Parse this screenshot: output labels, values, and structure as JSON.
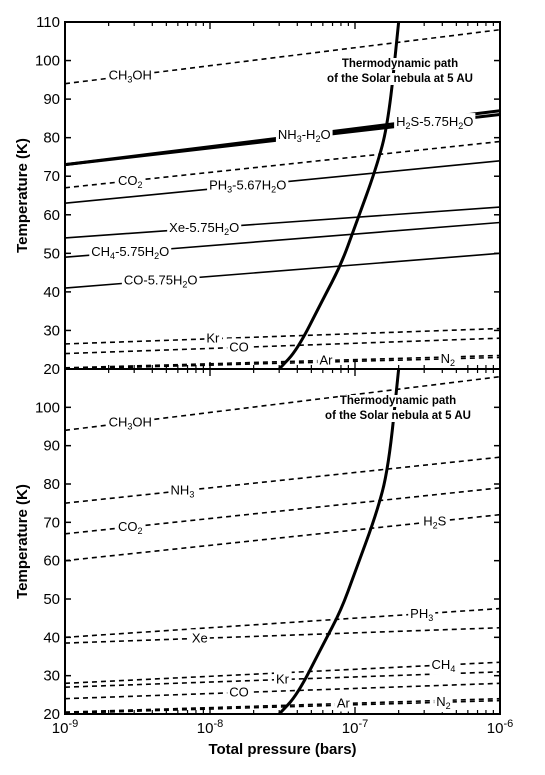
{
  "chart_data": [
    {
      "type": "line",
      "panel": "top",
      "xlabel": "",
      "ylabel": "Temperature (K)",
      "x_scale": "log",
      "xlim": [
        1e-09,
        1e-06
      ],
      "ylim": [
        20,
        110
      ],
      "y_ticks": [
        20,
        30,
        40,
        50,
        60,
        70,
        80,
        90,
        100,
        110
      ],
      "annotation": [
        "Thermodynamic path",
        "of the Solar nebula at 5 AU"
      ],
      "path": {
        "style": "solid-bold",
        "x": [
          3e-08,
          4e-08,
          6e-08,
          8e-08,
          1e-07,
          1.4e-07,
          1.7e-07,
          2e-07
        ],
        "y": [
          20,
          25,
          38,
          47,
          57,
          72,
          84,
          110
        ]
      },
      "series": [
        {
          "label_lines": [
            "CH",
            "3",
            "OH"
          ],
          "display": "CH3OH",
          "style": "dashed",
          "x": [
            1e-09,
            1e-06
          ],
          "y": [
            94,
            108
          ]
        },
        {
          "label_lines": [
            "NH",
            "3",
            "-H",
            "2",
            "O"
          ],
          "display": "NH3-H2O",
          "style": "solid-bold",
          "x": [
            1e-09,
            1e-06
          ],
          "y": [
            73,
            87
          ]
        },
        {
          "label_lines": [
            "H",
            "2",
            "S-5.75H",
            "2",
            "O"
          ],
          "display": "H2S-5.75H2O",
          "style": "solid-bold",
          "x": [
            1e-09,
            1e-06
          ],
          "y": [
            73,
            86
          ]
        },
        {
          "label_lines": [
            "CO",
            "2",
            ""
          ],
          "display": "CO2",
          "style": "dashed",
          "x": [
            1e-09,
            1e-06
          ],
          "y": [
            67,
            79
          ]
        },
        {
          "label_lines": [
            "PH",
            "3",
            "-5.67H",
            "2",
            "O"
          ],
          "display": "PH3-5.67H2O",
          "style": "solid",
          "x": [
            1e-09,
            1e-06
          ],
          "y": [
            63,
            74
          ]
        },
        {
          "label_lines": [
            "Xe-5.75H",
            "2",
            "O"
          ],
          "display": "Xe-5.75H2O",
          "style": "solid",
          "x": [
            1e-09,
            1e-06
          ],
          "y": [
            54,
            62
          ]
        },
        {
          "label_lines": [
            "CH",
            "4",
            "-5.75H",
            "2",
            "O"
          ],
          "display": "CH4-5.75H2O",
          "style": "solid",
          "x": [
            1e-09,
            1e-06
          ],
          "y": [
            49,
            58
          ]
        },
        {
          "label_lines": [
            "CO-5.75H",
            "2",
            "O"
          ],
          "display": "CO-5.75H2O",
          "style": "solid",
          "x": [
            1e-09,
            1e-06
          ],
          "y": [
            41,
            50
          ]
        },
        {
          "label_lines": [
            "Kr",
            "",
            ""
          ],
          "display": "Kr",
          "style": "dashed",
          "x": [
            1e-09,
            1e-06
          ],
          "y": [
            26.5,
            30.5
          ]
        },
        {
          "label_lines": [
            "CO",
            "",
            ""
          ],
          "display": "CO",
          "style": "dashed",
          "x": [
            1e-09,
            1e-06
          ],
          "y": [
            24,
            28
          ]
        },
        {
          "label_lines": [
            "Ar",
            "",
            ""
          ],
          "display": "Ar",
          "style": "dashed",
          "x": [
            1e-09,
            1e-06
          ],
          "y": [
            20.3,
            23.5
          ]
        },
        {
          "label_lines": [
            "N",
            "2",
            ""
          ],
          "display": "N2",
          "style": "dashed",
          "x": [
            1e-09,
            1e-06
          ],
          "y": [
            20,
            23
          ]
        }
      ]
    },
    {
      "type": "line",
      "panel": "bottom",
      "xlabel": "Total pressure (bars)",
      "ylabel": "Temperature (K)",
      "x_scale": "log",
      "xlim": [
        1e-09,
        1e-06
      ],
      "ylim": [
        20,
        110
      ],
      "x_ticks": [
        {
          "base": "10",
          "exp": "-9"
        },
        {
          "base": "10",
          "exp": "-8"
        },
        {
          "base": "10",
          "exp": "-7"
        },
        {
          "base": "10",
          "exp": "-6"
        }
      ],
      "y_ticks": [
        20,
        30,
        40,
        50,
        60,
        70,
        80,
        90,
        100
      ],
      "annotation": [
        "Thermodynamic path",
        "of the Solar nebula at 5 AU"
      ],
      "path": {
        "style": "solid-bold",
        "x": [
          3e-08,
          4e-08,
          6e-08,
          8e-08,
          1e-07,
          1.4e-07,
          1.7e-07,
          2e-07
        ],
        "y": [
          20,
          25,
          38,
          47,
          57,
          72,
          84,
          110
        ]
      },
      "series": [
        {
          "label_lines": [
            "CH",
            "3",
            "OH"
          ],
          "display": "CH3OH",
          "style": "dashed",
          "x": [
            1e-09,
            1e-06
          ],
          "y": [
            94,
            108
          ]
        },
        {
          "label_lines": [
            "NH",
            "3",
            ""
          ],
          "display": "NH3",
          "style": "dashed",
          "x": [
            1e-09,
            1e-06
          ],
          "y": [
            75,
            87
          ]
        },
        {
          "label_lines": [
            "CO",
            "2",
            ""
          ],
          "display": "CO2",
          "style": "dashed",
          "x": [
            1e-09,
            1e-06
          ],
          "y": [
            67,
            79
          ]
        },
        {
          "label_lines": [
            "H",
            "2",
            "S"
          ],
          "display": "H2S",
          "style": "dashed",
          "x": [
            1e-09,
            1e-06
          ],
          "y": [
            60,
            72
          ]
        },
        {
          "label_lines": [
            "PH",
            "3",
            ""
          ],
          "display": "PH3",
          "style": "dashed",
          "x": [
            1e-09,
            1e-06
          ],
          "y": [
            40,
            47.5
          ]
        },
        {
          "label_lines": [
            "Xe",
            "",
            ""
          ],
          "display": "Xe",
          "style": "dashed",
          "x": [
            1e-09,
            1e-06
          ],
          "y": [
            38.5,
            42.5
          ]
        },
        {
          "label_lines": [
            "CH",
            "4",
            ""
          ],
          "display": "CH4",
          "style": "dashed",
          "x": [
            1e-09,
            1e-06
          ],
          "y": [
            28,
            33.5
          ]
        },
        {
          "label_lines": [
            "Kr",
            "",
            ""
          ],
          "display": "Kr",
          "style": "dashed",
          "x": [
            1e-09,
            1e-06
          ],
          "y": [
            27,
            31
          ]
        },
        {
          "label_lines": [
            "CO",
            "",
            ""
          ],
          "display": "CO",
          "style": "dashed",
          "x": [
            1e-09,
            1e-06
          ],
          "y": [
            24,
            28
          ]
        },
        {
          "label_lines": [
            "Ar",
            "",
            ""
          ],
          "display": "Ar",
          "style": "dashed",
          "x": [
            1e-09,
            1e-06
          ],
          "y": [
            20.5,
            24
          ]
        },
        {
          "label_lines": [
            "N",
            "2",
            ""
          ],
          "display": "N2",
          "style": "dashed",
          "x": [
            1e-09,
            1e-06
          ],
          "y": [
            20.2,
            23.5
          ]
        }
      ]
    }
  ]
}
